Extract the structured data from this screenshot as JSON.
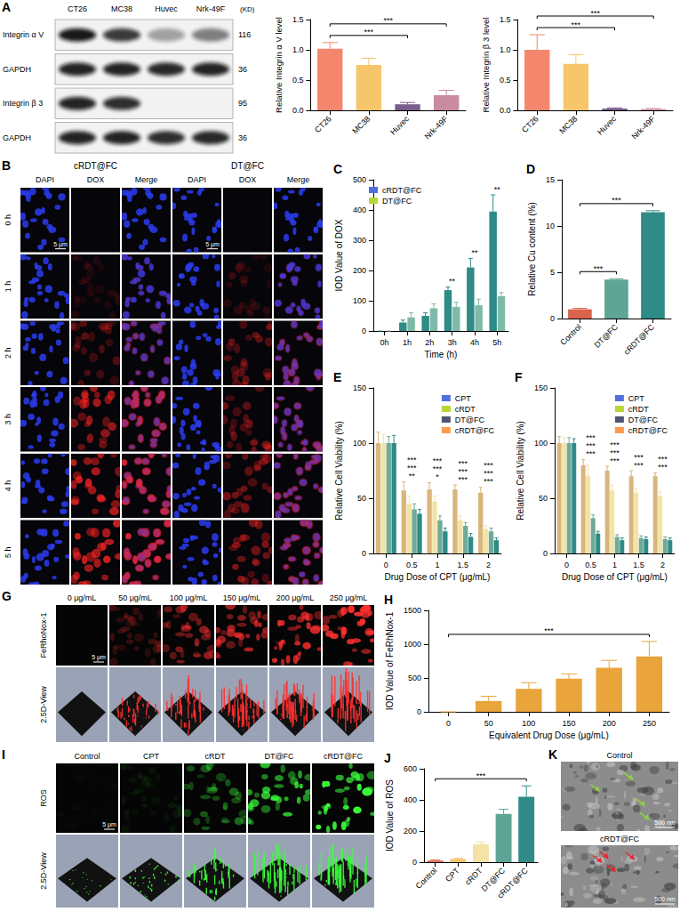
{
  "figure": {
    "A": {
      "letter": "A",
      "blot": {
        "lanes": [
          "CT26",
          "MC38",
          "Huvec",
          "Nrk-49F"
        ],
        "unit_label": "(KD)",
        "rows": [
          {
            "label": "Integrin α V",
            "kd": 116
          },
          {
            "label": "GAPDH",
            "kd": 36
          },
          {
            "label": "Integrin β 3",
            "kd": 95
          },
          {
            "label": "GAPDH",
            "kd": 36
          }
        ]
      }
    },
    "B": {
      "letter": "B",
      "groups": [
        "cRDT@FC",
        "DT@FC"
      ],
      "channels": [
        "DAPI",
        "DOX",
        "Merge"
      ],
      "rows": [
        "0 h",
        "1 h",
        "2 h",
        "3 h",
        "4 h",
        "5 h"
      ],
      "scale_bar": "5 μm"
    },
    "G": {
      "letter": "G",
      "columns": [
        "0 μg/mL",
        "50 μg/mL",
        "100 μg/mL",
        "150 μg/mL",
        "200 μg/mL",
        "250 μg/mL"
      ],
      "rows": [
        "FeRhoNox-1",
        "2.5D-View"
      ],
      "scale_bar": "5 μm"
    },
    "I": {
      "letter": "I",
      "columns": [
        "Control",
        "CPT",
        "cRDT",
        "DT@FC",
        "cRDT@FC"
      ],
      "rows": [
        "ROS",
        "2.5D-View"
      ],
      "scale_bar": "5 μm"
    },
    "K": {
      "letter": "K",
      "panels": [
        "Control",
        "cRDT@FC"
      ],
      "scale_bar": "500 nm"
    }
  },
  "chart_data": [
    {
      "type": "bar",
      "categories": [
        "CT26",
        "MC38",
        "Huvec",
        "Nrk-49F"
      ],
      "values": [
        1.02,
        0.75,
        0.1,
        0.25
      ],
      "errors": [
        0.1,
        0.11,
        0.03,
        0.08
      ],
      "colors": [
        "#F4866E",
        "#F7C56A",
        "#7A5D8C",
        "#C98B9E"
      ],
      "y_label": "Relative Integrin α V level",
      "ylim": [
        0,
        1.5
      ],
      "yticks": [
        {
          "value": 0,
          "label": "0.0"
        },
        0.5,
        {
          "value": 1,
          "label": "1.0"
        },
        1.5
      ],
      "grid": false,
      "annotations": [
        {
          "from": "CT26",
          "to": "Huvec",
          "text": "***"
        },
        {
          "from": "CT26",
          "to": "Nrk-49F",
          "text": "***"
        }
      ]
    },
    {
      "type": "bar",
      "categories": [
        "CT26",
        "MC38",
        "Huvec",
        "Nrk-49F"
      ],
      "values": [
        1.0,
        0.77,
        0.03,
        0.02
      ],
      "errors": [
        0.25,
        0.15,
        0.01,
        0.01
      ],
      "colors": [
        "#F4866E",
        "#F7C56A",
        "#7A5D8C",
        "#C98B9E"
      ],
      "y_label": "Relative Integrin β 3 level",
      "ylim": [
        0,
        1.5
      ],
      "yticks": [
        {
          "value": 0,
          "label": "0.0"
        },
        0.5,
        {
          "value": 1,
          "label": "1.0"
        },
        1.5
      ],
      "grid": false,
      "annotations": [
        {
          "from": "CT26",
          "to": "Huvec",
          "text": "***"
        },
        {
          "from": "CT26",
          "to": "Nrk-49F",
          "text": "***"
        }
      ]
    },
    {
      "type": "bar",
      "panel": "C",
      "categories": [
        "0h",
        "1h",
        "2h",
        "3h",
        "4h",
        "5h"
      ],
      "series": [
        {
          "name": "cRDT@FC",
          "color": "#2E8B86",
          "values": [
            0,
            28,
            50,
            135,
            210,
            395
          ],
          "errors": [
            0,
            8,
            10,
            10,
            30,
            55
          ]
        },
        {
          "name": "DT@FC",
          "color": "#7FB9A7",
          "values": [
            0,
            45,
            75,
            80,
            85,
            115
          ],
          "errors": [
            0,
            15,
            15,
            15,
            20,
            12
          ]
        }
      ],
      "x_label": "Time (h)",
      "y_label": "IOD Value of DOX",
      "ylim": [
        0,
        500
      ],
      "yticks": [
        0,
        100,
        200,
        300,
        400,
        500
      ],
      "legend": "upper left",
      "grid": false,
      "annotations": [
        {
          "category": "3h",
          "text": "**"
        },
        {
          "category": "4h",
          "text": "**"
        },
        {
          "category": "5h",
          "text": "**"
        }
      ]
    },
    {
      "type": "bar",
      "panel": "D",
      "categories": [
        "Control",
        "DT@FC",
        "cRDT@FC"
      ],
      "values": [
        1.0,
        4.2,
        11.5
      ],
      "errors": [
        0.1,
        0.1,
        0.15
      ],
      "colors": [
        "#D9634C",
        "#5EA595",
        "#2E8B86"
      ],
      "y_label": "Relative Cu content (%)",
      "ylim": [
        0,
        15
      ],
      "yticks": [
        0,
        5,
        10,
        15
      ],
      "grid": false,
      "annotations": [
        {
          "from": "Control",
          "to": "DT@FC",
          "text": "***"
        },
        {
          "from": "Control",
          "to": "cRDT@FC",
          "text": "***"
        }
      ]
    },
    {
      "type": "bar",
      "panel": "E",
      "categories": [
        "0",
        "0.5",
        "1",
        "1.5",
        "2"
      ],
      "series": [
        {
          "name": "CPT",
          "color": "#D9B57E",
          "values": [
            100,
            57,
            58,
            58,
            55
          ],
          "errors": [
            10,
            8,
            6,
            4,
            5
          ]
        },
        {
          "name": "cRDT",
          "color": "#F3E3A4",
          "values": [
            100,
            45,
            47,
            30,
            22
          ],
          "errors": [
            8,
            7,
            5,
            4,
            3
          ]
        },
        {
          "name": "DT@FC",
          "color": "#6FAA98",
          "values": [
            100,
            40,
            30,
            25,
            20
          ],
          "errors": [
            6,
            5,
            4,
            3,
            3
          ]
        },
        {
          "name": "cRDT@FC",
          "color": "#2E8B86",
          "values": [
            100,
            36,
            20,
            15,
            12
          ],
          "errors": [
            7,
            4,
            3,
            3,
            2
          ]
        }
      ],
      "x_label": "Drug Dose of CPT (μg/mL)",
      "y_label": "Relative Cell Viability (%)",
      "ylim": [
        0,
        150
      ],
      "yticks": [
        0,
        50,
        100,
        150
      ],
      "legend": "upper right",
      "grid": false,
      "annotations": [
        {
          "category": "0.5",
          "texts": [
            "**",
            "***",
            "***"
          ]
        },
        {
          "category": "1",
          "texts": [
            "*",
            "***",
            "***"
          ]
        },
        {
          "category": "1.5",
          "texts": [
            "***",
            "***",
            "***"
          ]
        },
        {
          "category": "2",
          "texts": [
            "***",
            "***",
            "***"
          ]
        }
      ]
    },
    {
      "type": "bar",
      "panel": "F",
      "categories": [
        "0",
        "0.5",
        "1",
        "1.5",
        "2"
      ],
      "series": [
        {
          "name": "CPT",
          "color": "#D9B57E",
          "values": [
            100,
            80,
            75,
            70,
            70
          ],
          "errors": [
            6,
            5,
            4,
            5,
            3
          ]
        },
        {
          "name": "cRDT",
          "color": "#F3E3A4",
          "values": [
            100,
            70,
            57,
            55,
            52
          ],
          "errors": [
            5,
            10,
            5,
            4,
            4
          ]
        },
        {
          "name": "DT@FC",
          "color": "#6FAA98",
          "values": [
            100,
            32,
            15,
            14,
            13
          ],
          "errors": [
            5,
            3,
            2,
            2,
            2
          ]
        },
        {
          "name": "cRDT@FC",
          "color": "#2E8B86",
          "values": [
            100,
            18,
            12,
            13,
            12
          ],
          "errors": [
            4,
            2,
            2,
            2,
            2
          ]
        }
      ],
      "x_label": "Drug Dose of CPT (μg/mL)",
      "y_label": "Relative Cell Viability (%)",
      "ylim": [
        0,
        150
      ],
      "yticks": [
        0,
        50,
        100,
        150
      ],
      "legend": "upper right",
      "grid": false,
      "annotations": [
        {
          "category": "0.5",
          "texts": [
            "***",
            "***",
            "***"
          ]
        },
        {
          "category": "1",
          "texts": [
            "***",
            "***",
            "***"
          ]
        },
        {
          "category": "1.5",
          "texts": [
            "***",
            "***"
          ]
        },
        {
          "category": "2",
          "texts": [
            "***",
            "***"
          ]
        }
      ]
    },
    {
      "type": "bar",
      "panel": "H",
      "categories": [
        "0",
        "50",
        "100",
        "150",
        "200",
        "250"
      ],
      "values": [
        0,
        160,
        340,
        490,
        650,
        820
      ],
      "errors": [
        0,
        70,
        90,
        70,
        110,
        220
      ],
      "color": "#E9A43C",
      "x_label": "Equivalent Drug Dose (μg/mL)",
      "y_label": "IOD Value of FeRhNox-1",
      "ylim": [
        0,
        1500
      ],
      "yticks": [
        0,
        500,
        1000,
        1500
      ],
      "grid": false,
      "annotations": [
        {
          "from": "0",
          "to": "250",
          "text": "***"
        }
      ]
    },
    {
      "type": "bar",
      "panel": "J",
      "categories": [
        "Control",
        "CPT",
        "cRDT",
        "DT@FC",
        "cRDT@FC"
      ],
      "values": [
        10,
        20,
        115,
        310,
        420
      ],
      "errors": [
        5,
        5,
        15,
        30,
        70
      ],
      "colors": [
        "#D9634C",
        "#F4C36B",
        "#F3E3A4",
        "#5EA595",
        "#2E8B86"
      ],
      "y_label": "IOD Value of ROS",
      "ylim": [
        0,
        600
      ],
      "yticks": [
        0,
        200,
        400,
        600
      ],
      "grid": false,
      "annotations": [
        {
          "from": "Control",
          "to": "cRDT@FC",
          "text": "***"
        }
      ]
    }
  ]
}
